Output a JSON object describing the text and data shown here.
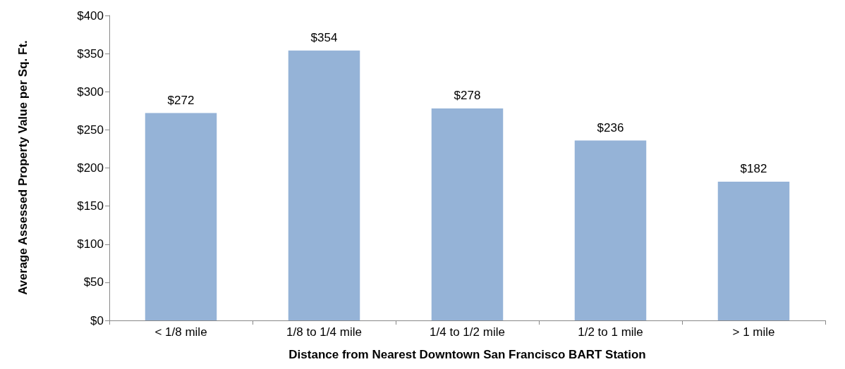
{
  "chart_data": {
    "type": "bar",
    "xlabel": "Distance from Nearest Downtown San Francisco BART Station",
    "ylabel": "Average Assessed Property Value per Sq. Ft.",
    "categories": [
      "< 1/8 mile",
      "1/8 to 1/4 mile",
      "1/4 to 1/2 mile",
      "1/2 to 1 mile",
      "> 1 mile"
    ],
    "values": [
      272,
      354,
      278,
      236,
      182
    ],
    "value_labels": [
      "$272",
      "$354",
      "$278",
      "$236",
      "$182"
    ],
    "color": "#95b3d7",
    "ylim": [
      0,
      400
    ],
    "yticks": [
      {
        "value": 0,
        "label": "$0"
      },
      {
        "value": 50,
        "label": "$50"
      },
      {
        "value": 100,
        "label": "$100"
      },
      {
        "value": 150,
        "label": "$150"
      },
      {
        "value": 200,
        "label": "$200"
      },
      {
        "value": 250,
        "label": "$250"
      },
      {
        "value": 300,
        "label": "$300"
      },
      {
        "value": 350,
        "label": "$350"
      },
      {
        "value": 400,
        "label": "$400"
      }
    ],
    "grid": false
  }
}
